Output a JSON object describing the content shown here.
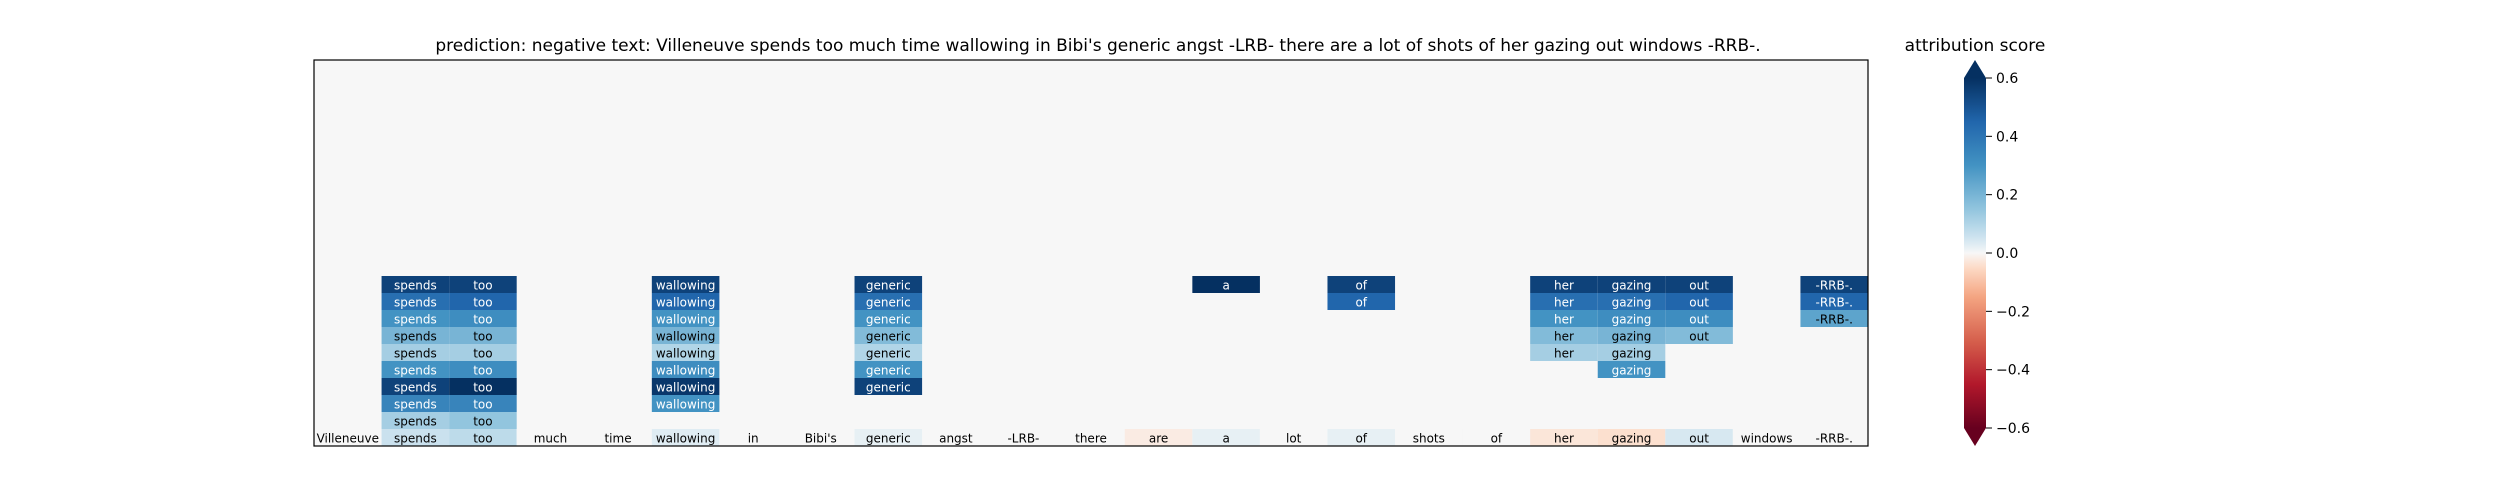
{
  "chart_data": {
    "type": "heatmap",
    "title": "prediction:  negative     text:  Villeneuve spends too much time wallowing in Bibi's generic angst -LRB- there are a lot of shots of her gazing out windows -RRB-.",
    "tokens": [
      "Villeneuve",
      "spends",
      "too",
      "much",
      "time",
      "wallowing",
      "in",
      "Bibi's",
      "generic",
      "angst",
      "-LRB-",
      "there",
      "are",
      "a",
      "lot",
      "of",
      "shots",
      "of",
      "her",
      "gazing",
      "out",
      "windows",
      "-RRB-."
    ],
    "bottom_row_scores": [
      0.0,
      0.06,
      0.08,
      0.0,
      0.0,
      0.03,
      0.0,
      0.0,
      0.02,
      0.0,
      0.0,
      0.0,
      -0.02,
      0.02,
      0.0,
      0.02,
      0.0,
      0.0,
      -0.03,
      -0.04,
      0.04,
      0.0,
      0.0
    ],
    "levels": [
      {
        "scores": {}
      },
      {
        "scores": {}
      },
      {
        "scores": {}
      },
      {
        "scores": {}
      },
      {
        "scores": {}
      },
      {
        "scores": {}
      },
      {
        "scores": {}
      },
      {
        "scores": {}
      },
      {
        "scores": {}
      },
      {
        "scores": {
          "1": 0.55,
          "2": 0.55,
          "5": 0.55,
          "8": 0.55,
          "13": 0.6,
          "15": 0.55,
          "18": 0.55,
          "19": 0.55,
          "20": 0.55,
          "22": 0.55
        }
      },
      {
        "scores": {
          "1": 0.42,
          "2": 0.45,
          "5": 0.45,
          "8": 0.42,
          "15": 0.45,
          "18": 0.42,
          "19": 0.42,
          "20": 0.45,
          "22": 0.45
        }
      },
      {
        "scores": {
          "1": 0.3,
          "2": 0.32,
          "5": 0.3,
          "8": 0.3,
          "18": 0.3,
          "19": 0.32,
          "20": 0.32,
          "22": 0.25
        }
      },
      {
        "scores": {
          "1": 0.2,
          "2": 0.2,
          "5": 0.2,
          "8": 0.18,
          "18": 0.18,
          "19": 0.2,
          "20": 0.18
        }
      },
      {
        "scores": {
          "1": 0.12,
          "2": 0.12,
          "5": 0.1,
          "8": 0.1,
          "18": 0.12,
          "19": 0.12
        }
      },
      {
        "scores": {
          "1": 0.3,
          "2": 0.32,
          "5": 0.32,
          "8": 0.3,
          "19": 0.3
        }
      },
      {
        "scores": {
          "1": 0.55,
          "2": 0.6,
          "5": 0.58,
          "8": 0.55
        }
      },
      {
        "scores": {
          "1": 0.35,
          "2": 0.35,
          "5": 0.3
        }
      },
      {
        "scores": {
          "1": 0.12,
          "2": 0.15
        }
      }
    ],
    "colorbar": {
      "label": "attribution score",
      "ticks": [
        0.6,
        0.4,
        0.2,
        0.0,
        -0.2,
        -0.4,
        -0.6
      ],
      "tick_labels": [
        "0.6",
        "0.4",
        "0.2",
        "0.0",
        "−0.2",
        "−0.4",
        "−0.6"
      ],
      "vmin": -0.6,
      "vmax": 0.6,
      "colormap": "RdBu"
    },
    "background_score": 0.0
  }
}
